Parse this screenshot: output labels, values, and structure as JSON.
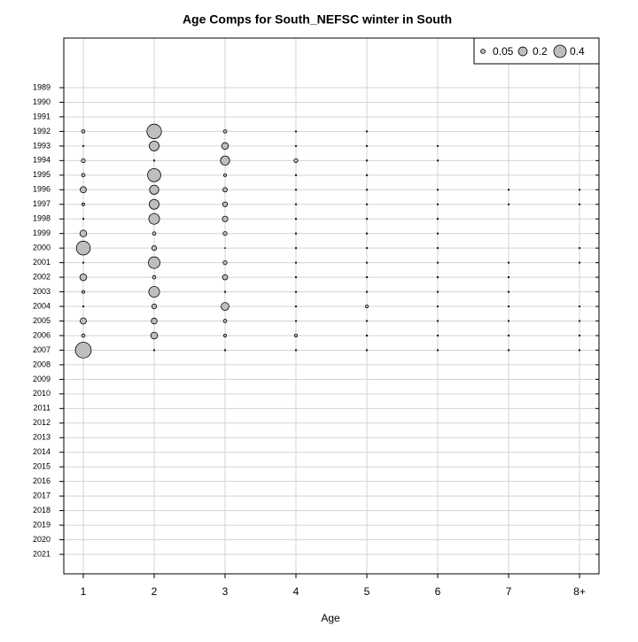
{
  "chart_data": {
    "type": "bubble",
    "title": "Age Comps for South_NEFSC winter in South",
    "x_label": "Age",
    "categories": [
      "1",
      "2",
      "3",
      "4",
      "5",
      "6",
      "7",
      "8+"
    ],
    "rows": [
      "1989",
      "1990",
      "1991",
      "1992",
      "1993",
      "1994",
      "1995",
      "1996",
      "1997",
      "1998",
      "1999",
      "2000",
      "2001",
      "2002",
      "2003",
      "2004",
      "2005",
      "2006",
      "2007",
      "2008",
      "2009",
      "2010",
      "2011",
      "2012",
      "2013",
      "2014",
      "2015",
      "2016",
      "2017",
      "2018",
      "2019",
      "2020",
      "2021"
    ],
    "values": [
      [
        null,
        null,
        null,
        null,
        null,
        null,
        null,
        null
      ],
      [
        null,
        null,
        null,
        null,
        null,
        null,
        null,
        null
      ],
      [
        null,
        null,
        null,
        null,
        null,
        null,
        null,
        null
      ],
      [
        0.03,
        0.55,
        0.03,
        0.005,
        0.005,
        null,
        null,
        null
      ],
      [
        0.005,
        0.25,
        0.12,
        0.005,
        0.005,
        0.005,
        null,
        null
      ],
      [
        0.04,
        0.005,
        0.22,
        0.04,
        0.005,
        0.005,
        null,
        null
      ],
      [
        0.03,
        0.45,
        0.02,
        0.005,
        0.005,
        null,
        null,
        null
      ],
      [
        0.1,
        0.22,
        0.05,
        0.005,
        0.005,
        0.005,
        0.005,
        0.005
      ],
      [
        0.02,
        0.25,
        0.06,
        0.005,
        0.005,
        0.005,
        0.005,
        0.005
      ],
      [
        0.005,
        0.3,
        0.08,
        0.005,
        0.005,
        0.005,
        null,
        null
      ],
      [
        0.12,
        0.03,
        0.04,
        0.005,
        0.005,
        0.005,
        null,
        null
      ],
      [
        0.5,
        0.06,
        0.002,
        0.005,
        0.005,
        0.005,
        null,
        0.005
      ],
      [
        0.005,
        0.35,
        0.04,
        0.005,
        0.005,
        0.005,
        0.005,
        0.005
      ],
      [
        0.12,
        0.03,
        0.07,
        0.005,
        0.005,
        0.005,
        0.005,
        null
      ],
      [
        0.02,
        0.3,
        0.005,
        0.005,
        0.005,
        0.005,
        0.005,
        null
      ],
      [
        0.005,
        0.06,
        0.16,
        0.005,
        0.02,
        0.005,
        0.005,
        0.005
      ],
      [
        0.1,
        0.09,
        0.03,
        0.005,
        0.005,
        0.005,
        0.005,
        0.005
      ],
      [
        0.03,
        0.12,
        0.02,
        0.02,
        0.005,
        0.005,
        0.005,
        0.005
      ],
      [
        0.65,
        0.005,
        0.005,
        0.005,
        0.005,
        0.005,
        0.005,
        0.005
      ],
      [
        null,
        null,
        null,
        null,
        null,
        null,
        null,
        null
      ],
      [
        null,
        null,
        null,
        null,
        null,
        null,
        null,
        null
      ],
      [
        null,
        null,
        null,
        null,
        null,
        null,
        null,
        null
      ],
      [
        null,
        null,
        null,
        null,
        null,
        null,
        null,
        null
      ],
      [
        null,
        null,
        null,
        null,
        null,
        null,
        null,
        null
      ],
      [
        null,
        null,
        null,
        null,
        null,
        null,
        null,
        null
      ],
      [
        null,
        null,
        null,
        null,
        null,
        null,
        null,
        null
      ],
      [
        null,
        null,
        null,
        null,
        null,
        null,
        null,
        null
      ],
      [
        null,
        null,
        null,
        null,
        null,
        null,
        null,
        null
      ],
      [
        null,
        null,
        null,
        null,
        null,
        null,
        null,
        null
      ],
      [
        null,
        null,
        null,
        null,
        null,
        null,
        null,
        null
      ],
      [
        null,
        null,
        null,
        null,
        null,
        null,
        null,
        null
      ],
      [
        null,
        null,
        null,
        null,
        null,
        null,
        null,
        null
      ],
      [
        null,
        null,
        null,
        null,
        null,
        null,
        null,
        null
      ]
    ],
    "size_legend": [
      0.05,
      0.2,
      0.4
    ],
    "color": "#bebebe",
    "grid": true,
    "legend": "top-right"
  }
}
